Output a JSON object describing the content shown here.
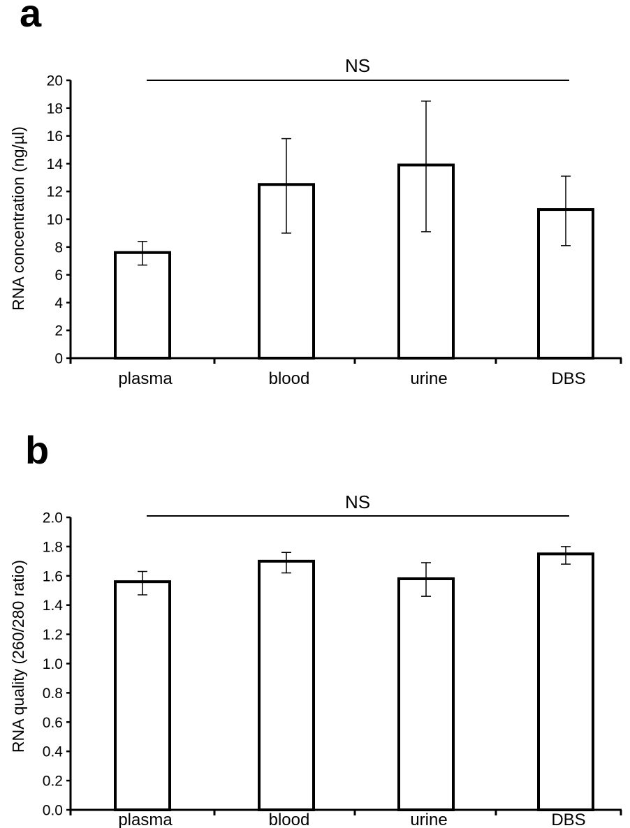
{
  "chart_data": [
    {
      "type": "bar",
      "panel_label": "a",
      "categories": [
        "plasma",
        "blood",
        "urine",
        "DBS"
      ],
      "values": [
        7.6,
        12.5,
        13.9,
        10.7
      ],
      "error_low": [
        6.7,
        9.0,
        9.1,
        8.1
      ],
      "error_high": [
        8.4,
        15.8,
        18.5,
        13.1
      ],
      "ylabel": "RNA concentration (ng/µl)",
      "xlabel": "",
      "ylim": [
        0,
        20
      ],
      "yticks": [
        "0",
        "2",
        "4",
        "6",
        "8",
        "10",
        "12",
        "14",
        "16",
        "18",
        "20"
      ],
      "annotation": "NS",
      "bar_fill": "#ffffff",
      "bar_stroke": "#000000",
      "grid": false
    },
    {
      "type": "bar",
      "panel_label": "b",
      "categories": [
        "plasma",
        "blood",
        "urine",
        "DBS"
      ],
      "values": [
        1.56,
        1.7,
        1.58,
        1.75
      ],
      "error_low": [
        1.47,
        1.62,
        1.46,
        1.68
      ],
      "error_high": [
        1.63,
        1.76,
        1.69,
        1.8
      ],
      "ylabel": "RNA quality (260/280 ratio)",
      "xlabel": "",
      "ylim": [
        0,
        2.0
      ],
      "yticks": [
        "0.0",
        "0.2",
        "0.4",
        "0.6",
        "0.8",
        "1.0",
        "1.2",
        "1.4",
        "1.6",
        "1.8",
        "2.0"
      ],
      "annotation": "NS",
      "bar_fill": "#ffffff",
      "bar_stroke": "#000000",
      "grid": false
    }
  ]
}
